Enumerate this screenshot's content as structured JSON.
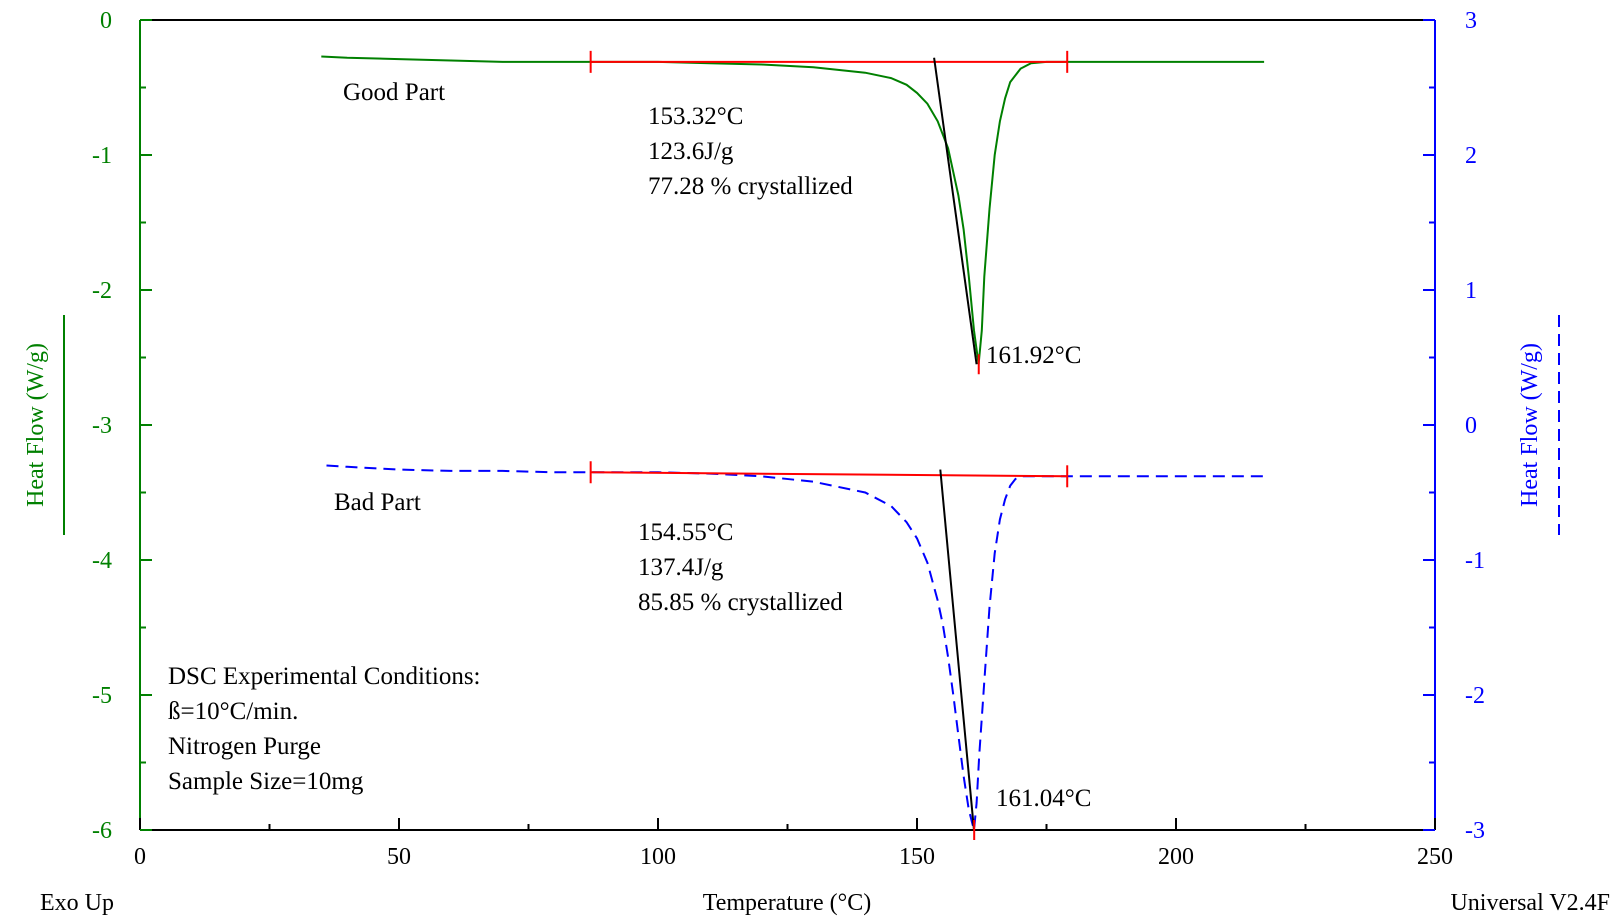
{
  "chart_data": {
    "type": "line",
    "title": "",
    "xlabel": "Temperature (°C)",
    "xlim": [
      0,
      250
    ],
    "x_ticks": [
      0,
      50,
      100,
      150,
      200,
      250
    ],
    "ylabel_left": "Heat Flow (W/g)",
    "ylim_left": [
      -6,
      0
    ],
    "y_ticks_left": [
      0,
      -1,
      -2,
      -3,
      -4,
      -5,
      -6
    ],
    "ylabel_right": "Heat Flow (W/g)",
    "ylim_right": [
      -3,
      3
    ],
    "y_ticks_right": [
      3,
      2,
      1,
      0,
      -1,
      -2,
      -3
    ],
    "grid": false,
    "legend": "none",
    "colors": {
      "left_axis": "#008000",
      "right_axis": "#0000ff",
      "good_curve": "#008000",
      "bad_curve": "#0000ff",
      "baseline": "#ff0000",
      "tangent": "#000000"
    },
    "series": [
      {
        "name": "Good Part",
        "axis": "left",
        "style": "solid",
        "x": [
          35,
          40,
          50,
          60,
          70,
          80,
          90,
          100,
          110,
          120,
          130,
          140,
          145,
          148,
          150,
          152,
          154,
          156,
          158,
          159,
          160,
          161,
          161.9,
          162.5,
          163,
          164,
          165,
          166,
          167,
          168,
          170,
          172,
          175,
          180,
          190,
          200,
          210,
          217
        ],
        "y": [
          -0.27,
          -0.28,
          -0.29,
          -0.3,
          -0.31,
          -0.31,
          -0.31,
          -0.31,
          -0.32,
          -0.33,
          -0.35,
          -0.39,
          -0.43,
          -0.48,
          -0.54,
          -0.62,
          -0.75,
          -0.95,
          -1.3,
          -1.55,
          -1.9,
          -2.3,
          -2.55,
          -2.3,
          -1.9,
          -1.4,
          -1.0,
          -0.75,
          -0.58,
          -0.46,
          -0.36,
          -0.32,
          -0.31,
          -0.31,
          -0.31,
          -0.31,
          -0.31,
          -0.31
        ]
      },
      {
        "name": "Bad Part",
        "axis": "right",
        "style": "dashed",
        "x": [
          36,
          40,
          50,
          60,
          70,
          80,
          90,
          100,
          110,
          120,
          130,
          140,
          145,
          148,
          150,
          152,
          154,
          155,
          156,
          157,
          158,
          159,
          160,
          161,
          161.5,
          162,
          163,
          164,
          165,
          166,
          167,
          168,
          169,
          170,
          175,
          180,
          190,
          200,
          210,
          217
        ],
        "y": [
          -0.3,
          -0.31,
          -0.33,
          -0.34,
          -0.34,
          -0.35,
          -0.35,
          -0.35,
          -0.36,
          -0.38,
          -0.42,
          -0.5,
          -0.6,
          -0.72,
          -0.84,
          -1.02,
          -1.3,
          -1.48,
          -1.72,
          -2.0,
          -2.3,
          -2.6,
          -2.85,
          -3.0,
          -2.8,
          -2.45,
          -1.9,
          -1.35,
          -0.95,
          -0.7,
          -0.55,
          -0.45,
          -0.4,
          -0.38,
          -0.38,
          -0.38,
          -0.38,
          -0.38,
          -0.38,
          -0.38
        ]
      }
    ],
    "integration_baselines": [
      {
        "series": "Good Part",
        "axis": "left",
        "x": [
          87,
          179
        ],
        "y": [
          -0.31,
          -0.31
        ]
      },
      {
        "series": "Bad Part",
        "axis": "right",
        "x": [
          87,
          179
        ],
        "y": [
          -0.35,
          -0.38
        ]
      }
    ],
    "tangents": [
      {
        "series": "Good Part",
        "axis": "left",
        "x": [
          153.3,
          161.5
        ],
        "y": [
          -0.28,
          -2.55
        ]
      },
      {
        "series": "Bad Part",
        "axis": "right",
        "x": [
          154.5,
          161.0
        ],
        "y": [
          -0.33,
          -3.0
        ]
      }
    ],
    "peaks": [
      {
        "series": "Good Part",
        "axis": "left",
        "x": 161.92,
        "y": -2.55
      },
      {
        "series": "Bad Part",
        "axis": "right",
        "x": 161.04,
        "y": -3.0
      }
    ],
    "annotations": {
      "good_name": "Good Part",
      "good_onset": "153.32°C",
      "good_enthalpy": "123.6J/g",
      "good_crystallized": "77.28 % crystallized",
      "good_peak": "161.92°C",
      "bad_name": "Bad Part",
      "bad_onset": "154.55°C",
      "bad_enthalpy": "137.4J/g",
      "bad_crystallized": "85.85 % crystallized",
      "bad_peak": "161.04°C",
      "conditions_title": "DSC Experimental Conditions:",
      "conditions_rate": "ß=10°C/min.",
      "conditions_purge": "Nitrogen Purge",
      "conditions_size": "Sample Size=10mg"
    },
    "footer_left": "Exo Up",
    "footer_right": "Universal V2.4F"
  }
}
